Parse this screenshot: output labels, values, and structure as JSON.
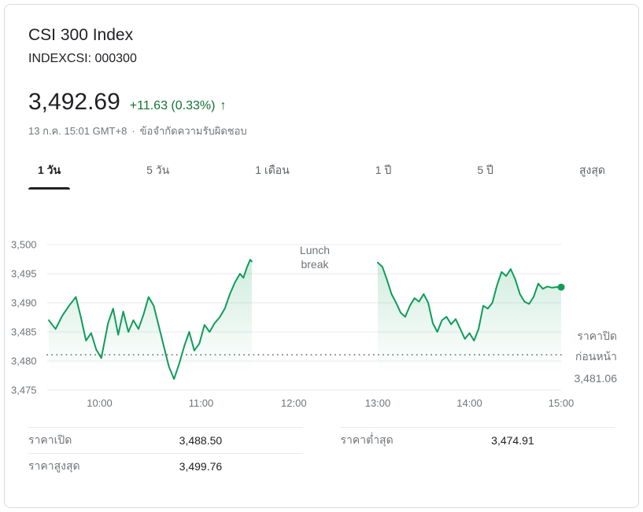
{
  "header": {
    "title": "CSI 300 Index",
    "ticker": "INDEXCSI: 000300",
    "price": "3,492.69",
    "change": "+11.63 (0.33%)",
    "arrow": "↑",
    "timestamp": "13 ก.ค. 15:01 GMT+8",
    "separator": "·",
    "disclaimer": "ข้อจำกัดความรับผิดชอบ"
  },
  "colors": {
    "green_text": "#137333",
    "line_green": "#0f9d58",
    "grid": "#e8eaed",
    "axis_text": "#70757a",
    "dotted_line": "#80868b"
  },
  "tabs": [
    {
      "label": "1 วัน",
      "active": true
    },
    {
      "label": "5 วัน",
      "active": false
    },
    {
      "label": "1 เดือน",
      "active": false
    },
    {
      "label": "1 ปี",
      "active": false
    },
    {
      "label": "5 ปี",
      "active": false
    },
    {
      "label": "สูงสุด",
      "active": false
    }
  ],
  "chart_data": {
    "type": "line",
    "title": "CSI 300 Index intraday price",
    "ylim": [
      3475,
      3500
    ],
    "yticks": [
      3475,
      3480,
      3485,
      3490,
      3495,
      3500
    ],
    "ytick_labels": [
      "3,475",
      "3,480",
      "3,485",
      "3,490",
      "3,495",
      "3,500"
    ],
    "x_range_minutes": [
      0,
      330
    ],
    "xticks_minutes": [
      30,
      90,
      150,
      210,
      270,
      330
    ],
    "xtick_labels": [
      "10:00",
      "11:00",
      "12:00",
      "13:00",
      "14:00",
      "15:00"
    ],
    "grid": true,
    "annotation": [
      "Lunch",
      "break"
    ],
    "previous_close": 3481.06,
    "previous_close_label": [
      "ราคาปิด",
      "ก่อนหน้า",
      "3,481.06"
    ],
    "open": 3488.5,
    "low": 3474.91,
    "high": 3499.76,
    "last": 3492.69,
    "line_color": "#0f9d58",
    "series": [
      {
        "name": "morning-session",
        "points": [
          [
            0,
            3487.0
          ],
          [
            4,
            3485.5
          ],
          [
            8,
            3487.8
          ],
          [
            12,
            3489.5
          ],
          [
            16,
            3491.0
          ],
          [
            19,
            3487.5
          ],
          [
            22,
            3483.5
          ],
          [
            25,
            3484.8
          ],
          [
            28,
            3482.0
          ],
          [
            31,
            3480.5
          ],
          [
            35,
            3486.5
          ],
          [
            38,
            3489.0
          ],
          [
            41,
            3484.5
          ],
          [
            44,
            3488.5
          ],
          [
            47,
            3485.0
          ],
          [
            50,
            3487.0
          ],
          [
            53,
            3485.5
          ],
          [
            56,
            3488.0
          ],
          [
            59,
            3491.0
          ],
          [
            62,
            3489.5
          ],
          [
            65,
            3486.0
          ],
          [
            68,
            3482.5
          ],
          [
            71,
            3479.0
          ],
          [
            74,
            3476.9
          ],
          [
            77,
            3479.5
          ],
          [
            80,
            3482.5
          ],
          [
            83,
            3485.0
          ],
          [
            86,
            3481.8
          ],
          [
            89,
            3483.0
          ],
          [
            92,
            3486.2
          ],
          [
            95,
            3485.0
          ],
          [
            98,
            3486.5
          ],
          [
            101,
            3487.5
          ],
          [
            104,
            3489.0
          ],
          [
            107,
            3491.5
          ],
          [
            110,
            3493.5
          ],
          [
            113,
            3495.0
          ],
          [
            115,
            3494.3
          ],
          [
            117,
            3496.0
          ],
          [
            119,
            3497.4
          ],
          [
            120,
            3497.1
          ]
        ]
      },
      {
        "name": "afternoon-session",
        "points": [
          [
            210,
            3496.9
          ],
          [
            213,
            3496.2
          ],
          [
            216,
            3494.0
          ],
          [
            219,
            3491.5
          ],
          [
            222,
            3490.0
          ],
          [
            225,
            3488.3
          ],
          [
            228,
            3487.6
          ],
          [
            231,
            3489.5
          ],
          [
            234,
            3490.8
          ],
          [
            237,
            3490.2
          ],
          [
            240,
            3491.5
          ],
          [
            243,
            3490.0
          ],
          [
            246,
            3486.5
          ],
          [
            249,
            3485.0
          ],
          [
            252,
            3487.0
          ],
          [
            255,
            3487.6
          ],
          [
            258,
            3486.3
          ],
          [
            261,
            3487.2
          ],
          [
            264,
            3485.5
          ],
          [
            267,
            3483.8
          ],
          [
            270,
            3484.8
          ],
          [
            273,
            3483.5
          ],
          [
            276,
            3485.5
          ],
          [
            279,
            3489.5
          ],
          [
            282,
            3489.0
          ],
          [
            285,
            3490.0
          ],
          [
            288,
            3493.0
          ],
          [
            291,
            3495.3
          ],
          [
            294,
            3494.6
          ],
          [
            297,
            3495.8
          ],
          [
            300,
            3494.0
          ],
          [
            303,
            3491.5
          ],
          [
            306,
            3490.2
          ],
          [
            309,
            3489.8
          ],
          [
            312,
            3491.0
          ],
          [
            315,
            3493.3
          ],
          [
            318,
            3492.4
          ],
          [
            321,
            3492.8
          ],
          [
            324,
            3492.6
          ],
          [
            327,
            3492.7
          ],
          [
            330,
            3492.69
          ]
        ]
      }
    ]
  },
  "stats": {
    "items": [
      {
        "label": "ราคาเปิด",
        "value": "3,488.50"
      },
      {
        "label": "ราคาต่ำสุด",
        "value": "3,474.91"
      },
      {
        "label": "ราคาสูงสุด",
        "value": "3,499.76"
      }
    ]
  }
}
